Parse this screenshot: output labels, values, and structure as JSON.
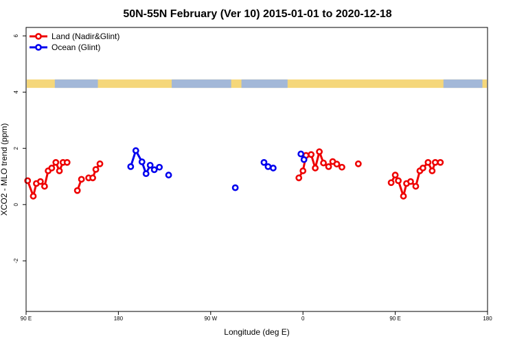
{
  "chart_data": {
    "type": "line",
    "title": "50N-55N February (Ver 10)   2015-01-01 to 2020-12-18",
    "xlabel": "Longitude (deg E)",
    "ylabel": "XCO2 - MLO trend (ppm)",
    "xlim": [
      90,
      540
    ],
    "ylim": [
      -3.8,
      6.3
    ],
    "xticks": [
      {
        "value": 90,
        "label": "90 E"
      },
      {
        "value": 180,
        "label": "180"
      },
      {
        "value": 270,
        "label": "90 W"
      },
      {
        "value": 360,
        "label": "0"
      },
      {
        "value": 450,
        "label": "90 E"
      },
      {
        "value": 540,
        "label": "180"
      }
    ],
    "yticks": [
      {
        "value": -2,
        "label": "-2"
      },
      {
        "value": 0,
        "label": "0"
      },
      {
        "value": 2,
        "label": "2"
      },
      {
        "value": 4,
        "label": "4"
      },
      {
        "value": 6,
        "label": "6"
      }
    ],
    "grid": false,
    "legend_position": "top-left",
    "land_sea_band": {
      "y_range": [
        4.15,
        4.45
      ],
      "land_color": "#f5d77a",
      "ocean_color": "#a3b8d8"
    },
    "series": [
      {
        "name": "Land (Nadir&Glint)",
        "color": "#ee0000",
        "segments": [
          [
            [
              91.5,
              0.85
            ],
            [
              97,
              0.3
            ],
            [
              100,
              0.75
            ],
            [
              104,
              0.82
            ],
            [
              108,
              0.65
            ],
            [
              111.5,
              1.2
            ],
            [
              115,
              1.3
            ],
            [
              119,
              1.5
            ],
            [
              122.5,
              1.2
            ],
            [
              126,
              1.5
            ],
            [
              130,
              1.5
            ]
          ],
          [
            [
              140,
              0.5
            ],
            [
              144,
              0.9
            ]
          ],
          [
            [
              151,
              0.95
            ],
            [
              155,
              0.95
            ],
            [
              158,
              1.25
            ],
            [
              162,
              1.45
            ]
          ],
          [
            [
              356,
              0.95
            ],
            [
              360,
              1.2
            ],
            [
              363,
              1.75
            ],
            [
              368,
              1.78
            ],
            [
              372,
              1.3
            ],
            [
              376,
              1.88
            ],
            [
              380,
              1.48
            ],
            [
              385,
              1.35
            ],
            [
              389,
              1.53
            ],
            [
              393,
              1.44
            ],
            [
              398,
              1.33
            ]
          ],
          [
            [
              414,
              1.45
            ]
          ],
          [
            [
              446,
              0.78
            ],
            [
              450,
              1.05
            ],
            [
              453,
              0.85
            ],
            [
              458,
              0.3
            ],
            [
              461,
              0.75
            ],
            [
              465,
              0.82
            ],
            [
              470,
              0.65
            ],
            [
              474,
              1.2
            ],
            [
              477,
              1.3
            ],
            [
              482,
              1.5
            ],
            [
              486,
              1.2
            ],
            [
              489,
              1.5
            ],
            [
              494,
              1.5
            ]
          ]
        ]
      },
      {
        "name": "Ocean (Glint)",
        "color": "#0000ee",
        "segments": [
          [
            [
              192,
              1.35
            ],
            [
              197,
              1.92
            ],
            [
              203,
              1.52
            ],
            [
              207,
              1.1
            ],
            [
              211,
              1.4
            ],
            [
              215,
              1.24
            ],
            [
              220,
              1.33
            ]
          ],
          [
            [
              229,
              1.05
            ]
          ],
          [
            [
              294,
              0.6
            ]
          ],
          [
            [
              322,
              1.5
            ],
            [
              326,
              1.35
            ],
            [
              331,
              1.3
            ]
          ],
          [
            [
              358,
              1.8
            ],
            [
              361,
              1.6
            ]
          ]
        ]
      }
    ]
  }
}
